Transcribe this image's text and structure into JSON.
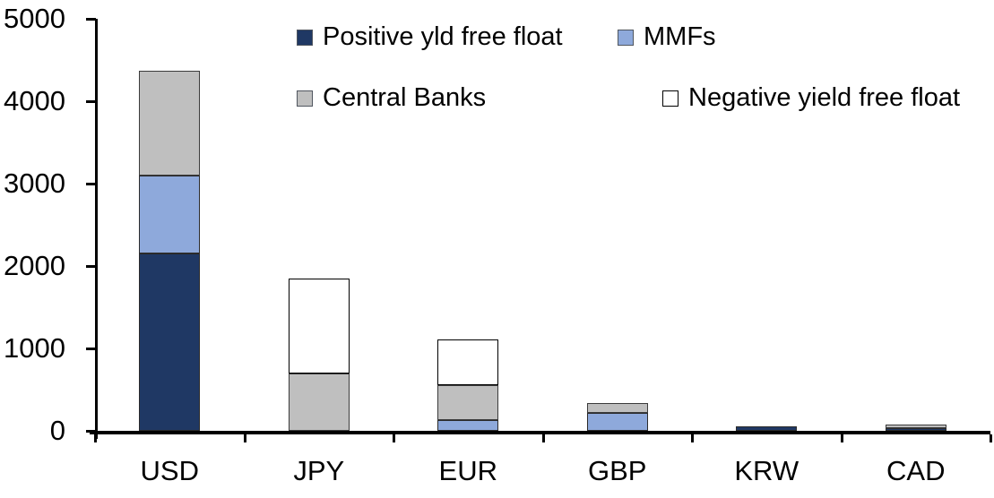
{
  "chart_data": {
    "type": "bar",
    "stacked": true,
    "title": "",
    "xlabel": "",
    "ylabel": "",
    "categories": [
      "USD",
      "JPY",
      "EUR",
      "GBP",
      "KRW",
      "CAD"
    ],
    "series": [
      {
        "name": "Positive yld free float",
        "color": "#1F3864",
        "border": "#2b2b2b",
        "values": [
          2150,
          0,
          0,
          0,
          50,
          35
        ]
      },
      {
        "name": "MMFs",
        "color": "#8EA9DB",
        "border": "#2b2b2b",
        "values": [
          945,
          0,
          130,
          220,
          0,
          0
        ]
      },
      {
        "name": "Central Banks",
        "color": "#BFBFBF",
        "border": "#3b3b3b",
        "values": [
          1275,
          700,
          420,
          115,
          0,
          40
        ]
      },
      {
        "name": "Negative yield free float",
        "color": "#FFFFFF",
        "border": "#000000",
        "values": [
          0,
          1150,
          560,
          0,
          0,
          0
        ]
      }
    ],
    "stack_totals": [
      4370,
      1850,
      1110,
      335,
      50,
      75
    ],
    "ylim": [
      0,
      5000
    ],
    "yticks": [
      "0",
      "1000",
      "2000",
      "3000",
      "4000",
      "5000"
    ],
    "ytick_values": [
      0,
      1000,
      2000,
      3000,
      4000,
      5000
    ],
    "grid": false,
    "legend_position": "top-inside-two-rows",
    "axis_color": "#000000",
    "background_color": "#FFFFFF"
  },
  "legend": {
    "items": [
      {
        "label": "Positive yld free float",
        "series_index": 0
      },
      {
        "label": "MMFs",
        "series_index": 1
      },
      {
        "label": "Central Banks",
        "series_index": 2
      },
      {
        "label": "Negative yield free float",
        "series_index": 3
      }
    ]
  }
}
